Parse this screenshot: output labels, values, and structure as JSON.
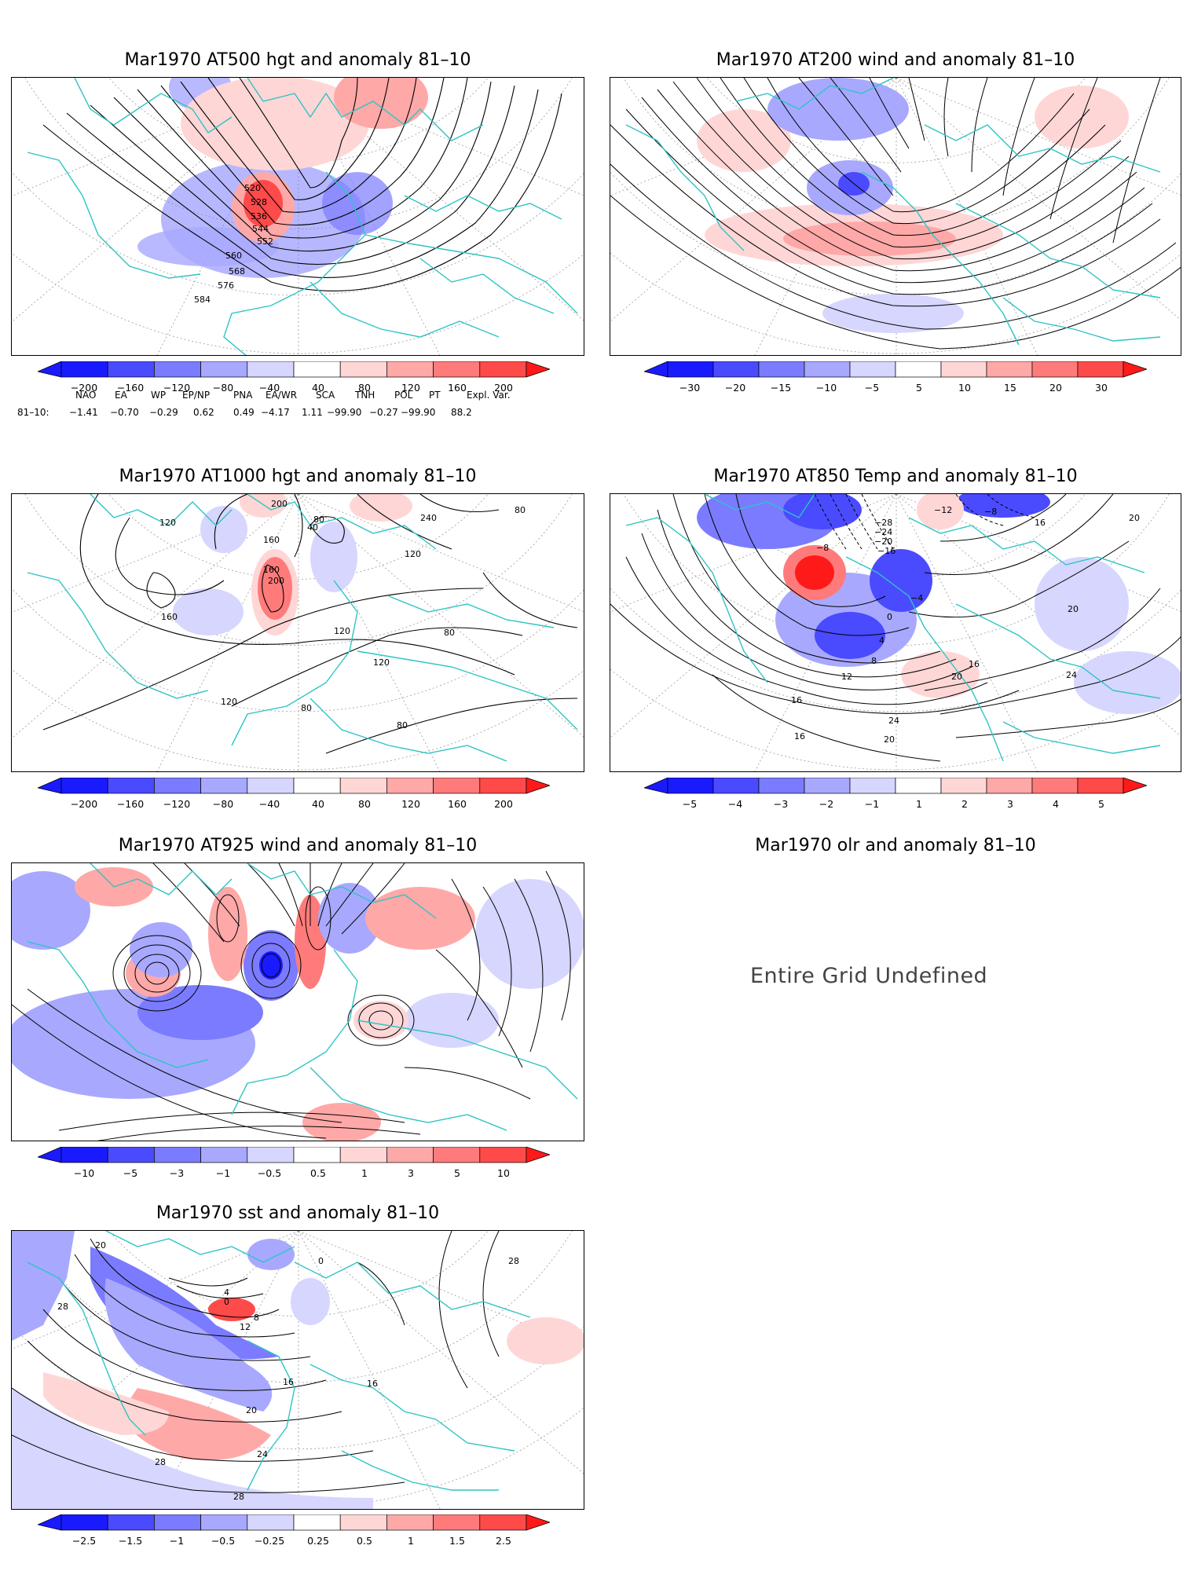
{
  "panels": [
    {
      "id": "p1",
      "title": "Mar1970 AT500 hgt and anomaly 81–10",
      "labels": [
        "520",
        "528",
        "536",
        "544",
        "552",
        "560",
        "568",
        "576",
        "584"
      ],
      "colorbar": {
        "ticks": [
          "−200",
          "−160",
          "−120",
          "−80",
          "−40",
          "40",
          "80",
          "120",
          "160",
          "200"
        ]
      }
    },
    {
      "id": "p2",
      "title": "Mar1970 AT200 wind and anomaly 81–10",
      "colorbar": {
        "ticks": [
          "−30",
          "−20",
          "−15",
          "−10",
          "−5",
          "5",
          "10",
          "15",
          "20",
          "30"
        ]
      }
    },
    {
      "id": "p3",
      "title": "Mar1970 AT1000 hgt and anomaly 81–10",
      "labels": [
        "200",
        "120",
        "80",
        "160",
        "40",
        "240",
        "160",
        "200",
        "120",
        "160",
        "120",
        "80",
        "80",
        "120",
        "80",
        "80",
        "120"
      ],
      "colorbar": {
        "ticks": [
          "−200",
          "−160",
          "−120",
          "−80",
          "−40",
          "40",
          "80",
          "120",
          "160",
          "200"
        ]
      }
    },
    {
      "id": "p4",
      "title": "Mar1970 AT850 Temp and anomaly 81–10",
      "labels": [
        "−12",
        "−8",
        "−28",
        "−24",
        "−20",
        "−16",
        "−8",
        "−4",
        "0",
        "4",
        "8",
        "12",
        "16",
        "16",
        "20",
        "24",
        "16",
        "16",
        "24",
        "20",
        "20",
        "20"
      ],
      "colorbar": {
        "ticks": [
          "−5",
          "−4",
          "−3",
          "−2",
          "−1",
          "1",
          "2",
          "3",
          "4",
          "5"
        ]
      }
    },
    {
      "id": "p5",
      "title": "Mar1970 AT925 wind and anomaly 81–10",
      "colorbar": {
        "ticks": [
          "−10",
          "−5",
          "−3",
          "−1",
          "−0.5",
          "0.5",
          "1",
          "3",
          "5",
          "10"
        ]
      }
    },
    {
      "id": "p6",
      "title": "Mar1970 olr and anomaly 81–10",
      "message": "Entire Grid Undefined"
    },
    {
      "id": "p7",
      "title": "Mar1970 sst and anomaly 81–10",
      "labels": [
        "20",
        "28",
        "0",
        "4",
        "8",
        "12",
        "16",
        "20",
        "24",
        "28",
        "28",
        "0",
        "16",
        "28"
      ],
      "colorbar": {
        "ticks": [
          "−2.5",
          "−1.5",
          "−1",
          "−0.5",
          "−0.25",
          "0.25",
          "0.5",
          "1",
          "1.5",
          "2.5"
        ]
      }
    }
  ],
  "indices": {
    "row_label": "81–10:",
    "names": [
      "NAO",
      "EA",
      "WP",
      "EP/NP",
      "PNA",
      "EA/WR",
      "SCA",
      "TNH",
      "POL",
      "PT",
      "Expl. Var."
    ],
    "values": [
      "−1.41",
      "−0.70",
      "−0.29",
      "0.62",
      "0.49",
      "−4.17",
      "1.11",
      "−99.90",
      "−0.27",
      "−99.90",
      "88.2"
    ]
  },
  "colors": {
    "coast": "#2ec4c4",
    "grid": "#9a9a9a",
    "contour": "#000000",
    "scale": [
      "#1a1aff",
      "#4a4aff",
      "#7b7bff",
      "#a8a8ff",
      "#d6d6ff",
      "#ffffff",
      "#ffd6d6",
      "#ffa8a8",
      "#ff7b7b",
      "#ff4a4a",
      "#ff1a1a"
    ]
  }
}
